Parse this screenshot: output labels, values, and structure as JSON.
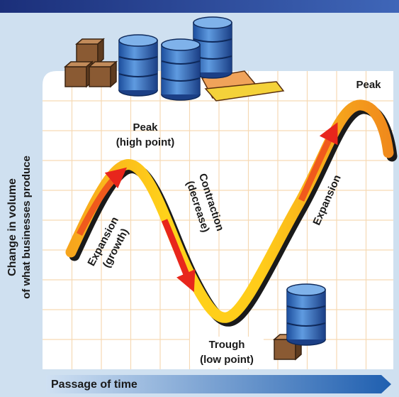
{
  "diagram": {
    "peak_left": [
      "Peak",
      "(high point)"
    ],
    "peak_right": "Peak",
    "contraction": [
      "Contraction",
      "(decrease)"
    ],
    "expansion_left": [
      "Expansion",
      "(growth)"
    ],
    "expansion_right": "Expansion",
    "trough": [
      "Trough",
      "(low point)"
    ],
    "y_axis": [
      "Change in volume",
      "of what businesses produce"
    ],
    "x_axis": "Passage of time"
  }
}
